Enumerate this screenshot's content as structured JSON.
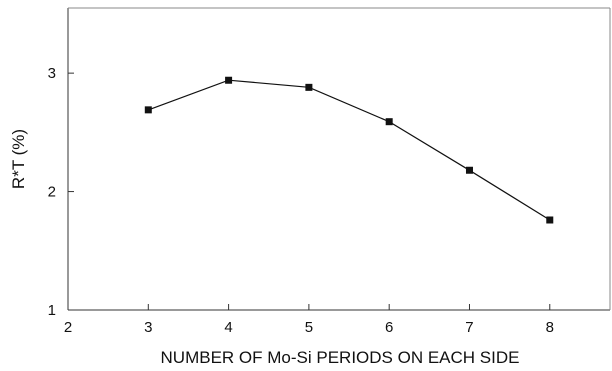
{
  "chart_data": {
    "type": "line",
    "title": "",
    "xlabel": "NUMBER OF Mo-Si PERIODS ON EACH SIDE",
    "ylabel": "R*T (%)",
    "xlim": [
      2,
      8.75
    ],
    "ylim": [
      1,
      3.55
    ],
    "xticks": [
      2,
      3,
      4,
      5,
      6,
      7,
      8
    ],
    "yticks": [
      1,
      2,
      3
    ],
    "grid": false,
    "series": [
      {
        "x": [
          3,
          4,
          5,
          6,
          7,
          8
        ],
        "y": [
          2.69,
          2.94,
          2.88,
          2.59,
          2.18,
          1.76
        ],
        "marker": "square",
        "color": "#111111"
      }
    ]
  }
}
